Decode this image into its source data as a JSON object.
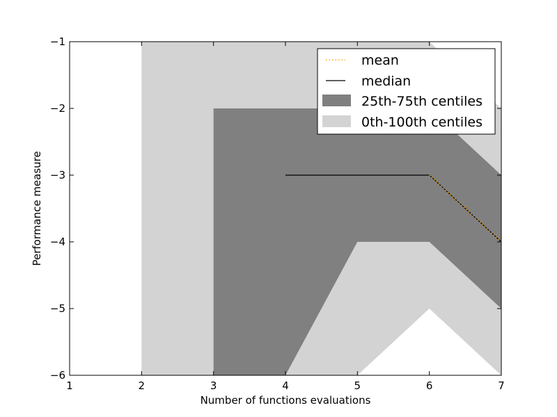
{
  "chart_data": {
    "type": "area",
    "xlabel": "Number of functions evaluations",
    "ylabel": "Performance measure",
    "xlim": [
      1,
      7
    ],
    "ylim": [
      -6,
      -1
    ],
    "xticks": [
      1,
      2,
      3,
      4,
      5,
      6,
      7
    ],
    "yticks": [
      -1,
      -2,
      -3,
      -4,
      -5,
      -6
    ],
    "xtick_labels": [
      "1",
      "2",
      "3",
      "4",
      "5",
      "6",
      "7"
    ],
    "ytick_labels": [
      "−1",
      "−2",
      "−3",
      "−4",
      "−5",
      "−6"
    ],
    "grid": false,
    "legend_position": "top-right",
    "series": [
      {
        "name": "0th-100th centiles",
        "kind": "band",
        "color": "#d3d3d3",
        "x": [
          2,
          3,
          4,
          5,
          6,
          7
        ],
        "lower": [
          -6,
          -6,
          -6,
          -6,
          -5,
          -6
        ],
        "upper": [
          -1,
          -1,
          -1,
          -1,
          -1,
          -2
        ]
      },
      {
        "name": "25th-75th centiles",
        "kind": "band",
        "color": "#808080",
        "x": [
          3,
          4,
          5,
          6,
          7
        ],
        "lower": [
          -6,
          -6,
          -4,
          -4,
          -5
        ],
        "upper": [
          -2,
          -2,
          -2,
          -2,
          -3
        ]
      },
      {
        "name": "median",
        "kind": "line",
        "color": "#000000",
        "x": [
          4,
          5,
          6,
          7
        ],
        "y": [
          -3,
          -3,
          -3,
          -4
        ]
      },
      {
        "name": "mean",
        "kind": "line",
        "style": "dotted",
        "color": "#ffa500",
        "x": [
          6,
          7
        ],
        "y": [
          -3,
          -4
        ]
      }
    ],
    "legend": [
      "mean",
      "median",
      "25th-75th centiles",
      "0th-100th centiles"
    ]
  }
}
